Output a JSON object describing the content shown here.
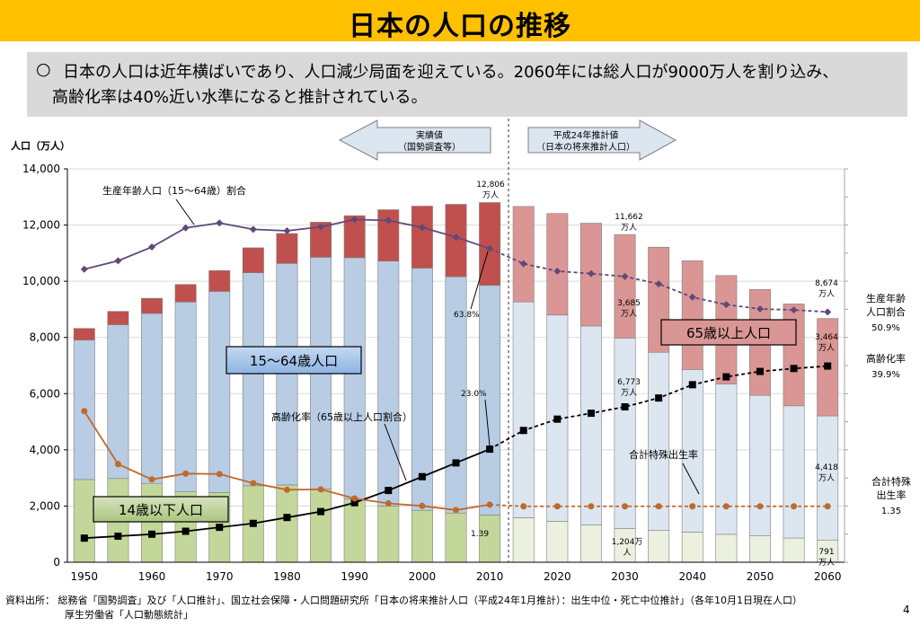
{
  "page": {
    "title": "日本の人口の推移",
    "summary_mark": "○",
    "summary_line1": "日本の人口は近年横ばいであり、人口減少局面を迎えている。2060年には総人口が9000万人を割り込み、",
    "summary_line2": "高齢化率は40%近い水準になると推計されている。",
    "footer_line1": "資料出所： 総務省「国勢調査」及び「人口推計」、国立社会保障・人口問題研究所「日本の将来推計人口（平成24年1月推計）：出生中位・死亡中位推計」（各年10月1日現在人口）",
    "footer_line2": "厚生労働省「人口動態統計」",
    "page_number": "4"
  },
  "chart_data": {
    "type": "bar",
    "y_unit_label": "人口（万人）",
    "ylim": [
      0,
      14000
    ],
    "yticks": [
      "0",
      "2,000",
      "4,000",
      "6,000",
      "8,000",
      "10,000",
      "12,000",
      "14,000"
    ],
    "x_tick_labels": [
      "1950",
      "1960",
      "1970",
      "1980",
      "1990",
      "2000",
      "2010",
      "2020",
      "2030",
      "2040",
      "2050",
      "2060"
    ],
    "years": [
      1950,
      1955,
      1960,
      1965,
      1970,
      1975,
      1980,
      1985,
      1990,
      1995,
      2000,
      2005,
      2010,
      2015,
      2020,
      2025,
      2030,
      2035,
      2040,
      2045,
      2050,
      2055,
      2060
    ],
    "projection_start_index": 13,
    "stacked_series": [
      {
        "name": "14歳以下人口",
        "values": [
          2943,
          2980,
          2807,
          2517,
          2482,
          2722,
          2751,
          2603,
          2249,
          2001,
          1847,
          1752,
          1680,
          1583,
          1457,
          1324,
          1204,
          1129,
          1073,
          994,
          939,
          861,
          791
        ],
        "color": "#C4D79B",
        "color_projection": "#EBF1DE"
      },
      {
        "name": "15～64歳人口",
        "values": [
          4966,
          5473,
          6047,
          6744,
          7157,
          7581,
          7883,
          8251,
          8590,
          8716,
          8622,
          8409,
          8173,
          7682,
          7341,
          7084,
          6773,
          6343,
          5787,
          5353,
          5001,
          4706,
          4418
        ],
        "color": "#B8CCE4",
        "color_projection": "#DCE6F1"
      },
      {
        "name": "65歳以上人口",
        "values": [
          411,
          475,
          540,
          624,
          739,
          887,
          1065,
          1247,
          1493,
          1828,
          2204,
          2576,
          2948,
          3395,
          3612,
          3657,
          3685,
          3741,
          3868,
          3856,
          3768,
          3626,
          3464
        ],
        "color": "#C0504D",
        "color_projection": "#DA9694"
      }
    ],
    "line_series": [
      {
        "name": "生産年齢人口（15～64歳）割合",
        "axis": "right",
        "marker": "diamond",
        "color": "#5F497A",
        "values": [
          59.6,
          61.3,
          64.1,
          68.0,
          69.0,
          67.7,
          67.4,
          68.2,
          69.7,
          69.5,
          68.1,
          66.1,
          63.8,
          60.7,
          59.2,
          58.7,
          58.1,
          56.6,
          53.9,
          52.4,
          51.5,
          51.3,
          50.9
        ]
      },
      {
        "name": "高齢化率（65歳以上人口割合）",
        "axis": "right",
        "marker": "square",
        "color": "#000000",
        "values": [
          4.9,
          5.3,
          5.7,
          6.3,
          7.1,
          7.9,
          9.1,
          10.3,
          12.1,
          14.6,
          17.4,
          20.2,
          23.0,
          26.8,
          29.1,
          30.3,
          31.6,
          33.4,
          36.1,
          37.7,
          38.8,
          39.4,
          39.9
        ]
      },
      {
        "name": "合計特殊出生率",
        "axis": "hidden",
        "marker": "circle",
        "color": "#C0692C",
        "values": [
          3.65,
          2.37,
          2.0,
          2.14,
          2.13,
          1.91,
          1.75,
          1.76,
          1.54,
          1.42,
          1.36,
          1.26,
          1.39,
          1.35,
          1.35,
          1.35,
          1.35,
          1.35,
          1.35,
          1.35,
          1.35,
          1.35,
          1.35
        ]
      }
    ],
    "right_axis_range": [
      0,
      80
    ],
    "fertility_axis_range": [
      0,
      9.5
    ],
    "banner_actual": "実績値",
    "banner_actual_sub": "（国勢調査等）",
    "banner_projection": "平成24年推計値",
    "banner_projection_sub": "（日本の将来推計人口）",
    "box_labels": {
      "young": "14歳以下人口",
      "working": "15～64歳人口",
      "elderly": "65歳以上人口"
    },
    "line_labels": {
      "working_ratio": "生産年齢人口（15～64歳）割合",
      "aging_rate": "高齢化率（65歳以上人口割合）",
      "fertility": "合計特殊出生率"
    },
    "annotations": {
      "total_2010": [
        "12,806",
        "万人"
      ],
      "ratio_2010": "63.8%",
      "aging_2010": "23.0%",
      "fert_2010": "1.39",
      "total_2030": [
        "11,662",
        "万人"
      ],
      "elderly_2030": [
        "3,685",
        "万人"
      ],
      "working_2030": [
        "6,773",
        "万人"
      ],
      "young_2030": [
        "1,204万",
        "人"
      ],
      "total_2060": [
        "8,674",
        "万人"
      ],
      "elderly_2060": [
        "3,464",
        "万人"
      ],
      "working_2060": [
        "4,418",
        "万人"
      ],
      "young_2060": [
        "791",
        "万人"
      ]
    },
    "right_labels": {
      "working_ratio": [
        "生産年齢",
        "人口割合",
        "50.9%"
      ],
      "aging_rate": [
        "高齢化率",
        "39.9%"
      ],
      "fertility": [
        "合計特殊",
        "出生率",
        "1.35"
      ]
    }
  },
  "colors": {
    "title_bar": "#FFC000",
    "summary_bg": "#D9D9D9",
    "banner_fill": "#DCE6F1",
    "box_working": "#8DB4E2",
    "box_young": "#C4D79B",
    "box_elderly": "#DA9694"
  }
}
